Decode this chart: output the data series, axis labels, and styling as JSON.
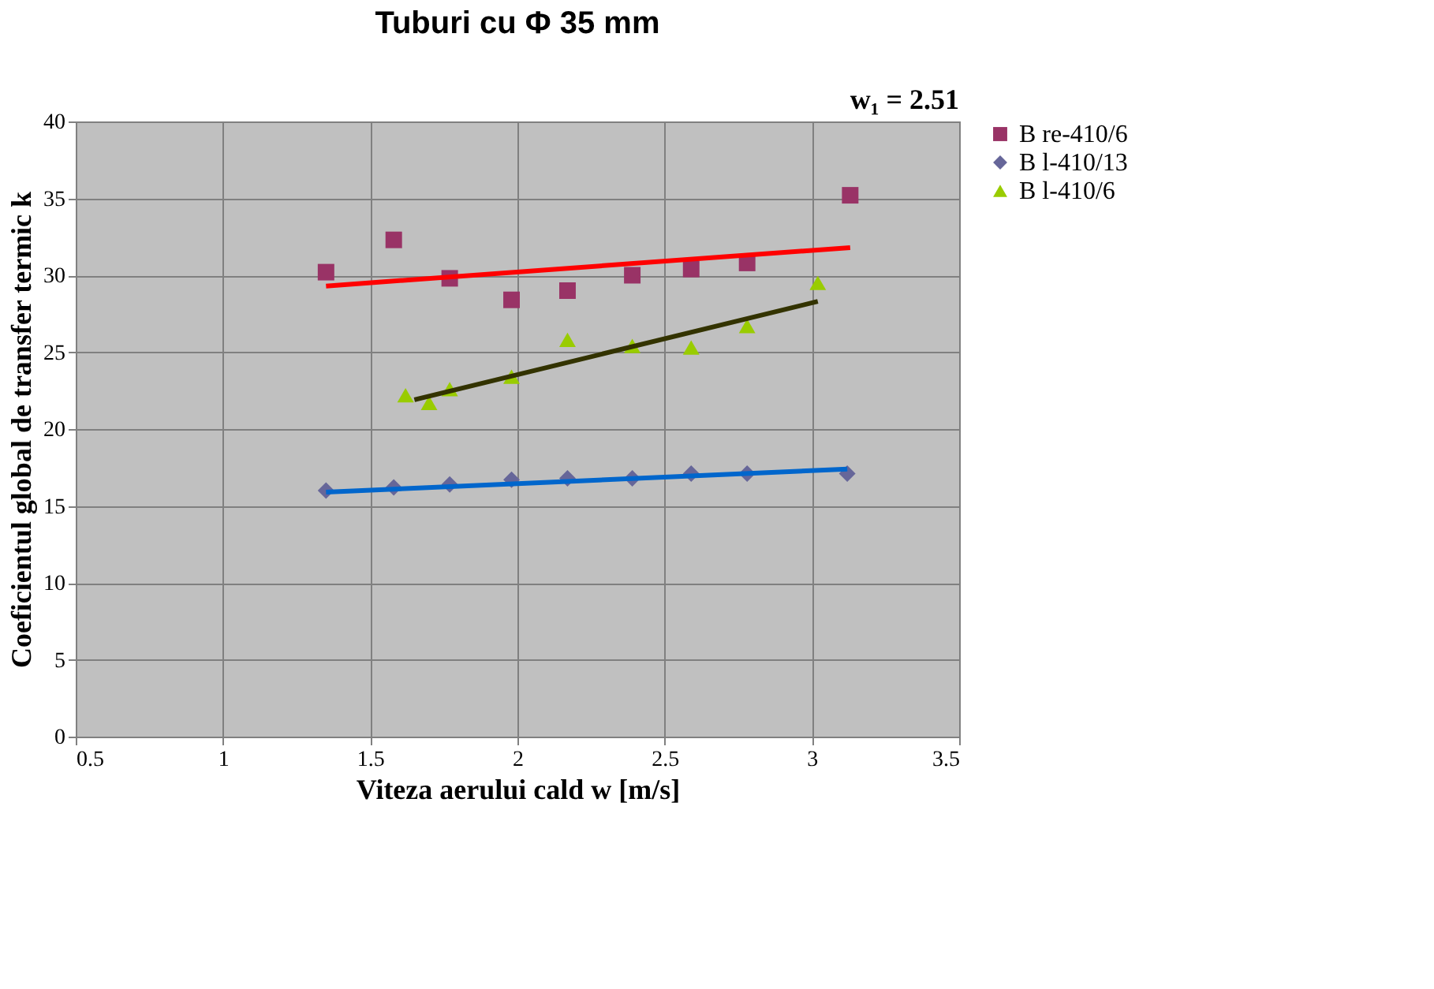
{
  "chart_data": {
    "type": "scatter",
    "title": "Tuburi cu Φ 35 mm",
    "xlabel": "Viteza aerului cald w [m/s]",
    "ylabel": "Coeficientul global de transfer termic k",
    "annotations": [
      "w₁ = 2.51"
    ],
    "series": [
      {
        "name": "B re-410/6",
        "color": "#993366",
        "marker": "square",
        "x": [
          1.35,
          1.58,
          1.77,
          1.98,
          2.17,
          2.39,
          2.59,
          2.78,
          3.13
        ],
        "values": [
          30.2,
          32.3,
          29.8,
          28.4,
          29,
          30,
          30.4,
          30.8,
          35.2
        ]
      },
      {
        "name": "B l-410/13",
        "color": "#666699",
        "marker": "diamond",
        "x": [
          1.35,
          1.58,
          1.77,
          1.98,
          2.17,
          2.39,
          2.59,
          2.78,
          3.12
        ],
        "values": [
          16,
          16.2,
          16.4,
          16.7,
          16.8,
          16.8,
          17.1,
          17.1,
          17.1
        ]
      },
      {
        "name": "B l-410/6",
        "color": "#99cc00",
        "marker": "triangle",
        "x": [
          1.62,
          1.7,
          1.77,
          1.98,
          2.17,
          2.39,
          2.59,
          2.78,
          3.02
        ],
        "values": [
          22.2,
          21.7,
          22.6,
          23.4,
          25.8,
          25.4,
          25.3,
          26.7,
          29.5
        ]
      },
      {
        "type": "line",
        "color": "#ff0000",
        "x": [
          1.35,
          3.13
        ],
        "values": [
          29.3,
          31.8
        ]
      },
      {
        "type": "line",
        "color": "#0066cc",
        "x": [
          1.35,
          3.12
        ],
        "values": [
          15.9,
          17.4
        ]
      },
      {
        "type": "line",
        "color": "#333300",
        "x": [
          1.65,
          3.02
        ],
        "values": [
          21.9,
          28.3
        ]
      }
    ],
    "xlim": [
      0.5,
      3.5
    ],
    "xticks": [
      0.5,
      1,
      1.5,
      2,
      2.5,
      3,
      3.5
    ],
    "ylim": [
      0,
      40
    ],
    "yticks": [
      0,
      5,
      10,
      15,
      20,
      25,
      30,
      35,
      40
    ],
    "grid": true,
    "legend": "right"
  }
}
